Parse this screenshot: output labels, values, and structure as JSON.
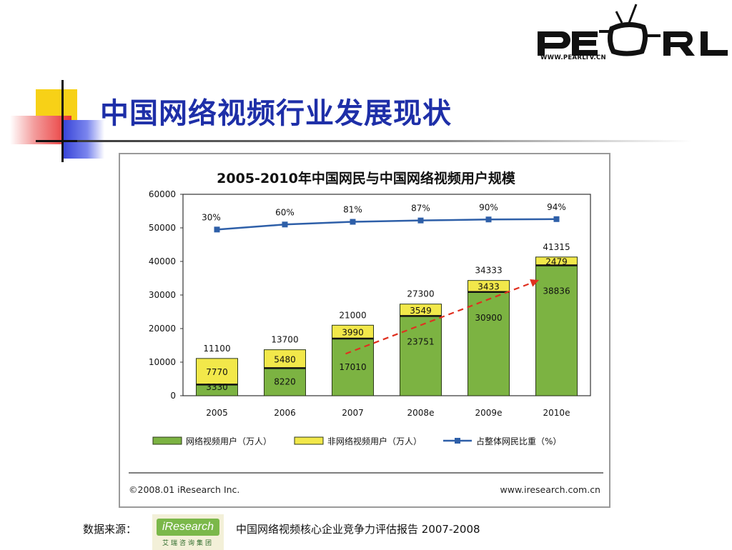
{
  "slide": {
    "title": "中国网络视频行业发展现状",
    "logo_text": "PEARL",
    "logo_url": "WWW.PEARLTV.CN",
    "source_label": "数据来源：",
    "source_logo": "iResearch",
    "source_logo_sub": "艾瑞咨询集团",
    "report_title": "中国网络视频核心企业竞争力评估报告 2007-2008"
  },
  "colors": {
    "title": "#1e2fa8",
    "video_users": "#7cb342",
    "non_video_users": "#f2e84a",
    "ratio_line": "#2e5fa8",
    "trend_arrow": "#e03020"
  },
  "chart_data": {
    "type": "bar",
    "stacked": true,
    "title": "2005-2010年中国网民与中国网络视频用户规模",
    "categories": [
      "2005",
      "2006",
      "2007",
      "2008e",
      "2009e",
      "2010e"
    ],
    "series": [
      {
        "name": "网络视频用户（万人）",
        "values": [
          3330,
          8220,
          17010,
          23751,
          30900,
          38836
        ]
      },
      {
        "name": "非网络视频用户（万人）",
        "values": [
          7770,
          5480,
          3990,
          3549,
          3433,
          2479
        ]
      }
    ],
    "totals": [
      11100,
      13700,
      21000,
      27300,
      34333,
      41315
    ],
    "line_series": {
      "name": "占整体网民比重（%）",
      "labels": [
        "30%",
        "60%",
        "81%",
        "87%",
        "90%",
        "94%"
      ],
      "percent": [
        30,
        60,
        81,
        87,
        90,
        94
      ],
      "plotted_values": [
        49500,
        51000,
        51800,
        52200,
        52500,
        52600
      ]
    },
    "ylim": [
      0,
      60000
    ],
    "yticks": [
      0,
      10000,
      20000,
      30000,
      40000,
      50000,
      60000
    ],
    "grid": false,
    "legend_position": "bottom",
    "copyright": "©2008.01 iResearch Inc.",
    "website": "www.iresearch.com.cn"
  }
}
